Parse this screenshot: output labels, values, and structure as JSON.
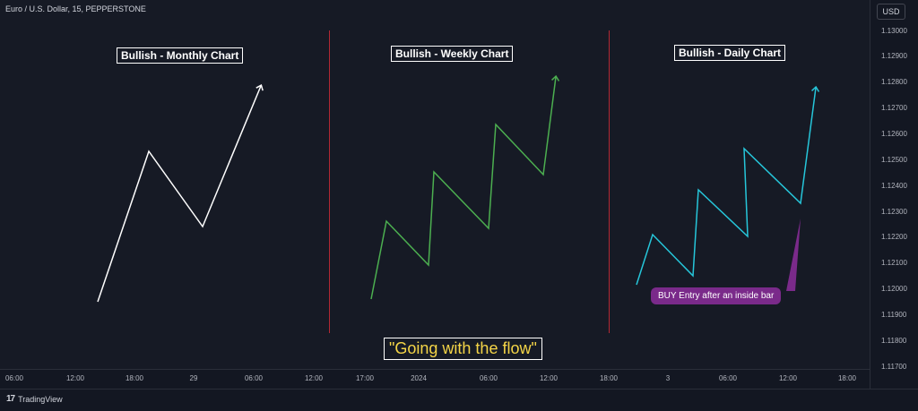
{
  "header": {
    "symbol_title": "Euro / U.S. Dollar, 15, PEPPERSTONE",
    "currency": "USD"
  },
  "price_axis": {
    "labels": [
      "1.13000",
      "1.12900",
      "1.12800",
      "1.12700",
      "1.12600",
      "1.12500",
      "1.12400",
      "1.12300",
      "1.12200",
      "1.12100",
      "1.12000",
      "1.11900",
      "1.11800",
      "1.11700"
    ]
  },
  "time_axis": {
    "labels": [
      "06:00",
      "12:00",
      "18:00",
      "29",
      "06:00",
      "12:00",
      "17:00",
      "2024",
      "06:00",
      "12:00",
      "18:00",
      "3",
      "06:00",
      "12:00",
      "18:00"
    ]
  },
  "panels": {
    "monthly": {
      "title": "Bullish - Monthly Chart",
      "color": "#ffffff"
    },
    "weekly": {
      "title": "Bullish - Weekly Chart",
      "color": "#4caf50"
    },
    "daily": {
      "title": "Bullish - Daily Chart",
      "color": "#26c6da"
    }
  },
  "annotations": {
    "buy_note": "BUY Entry after an inside bar",
    "buy_note_color": "#7a2a8a",
    "caption": "\"Going with the flow\"",
    "caption_color": "#f5d547",
    "divider_color": "#b22833"
  },
  "footer": {
    "brand": "TradingView",
    "logo_icon": "tradingview-logo-icon"
  }
}
